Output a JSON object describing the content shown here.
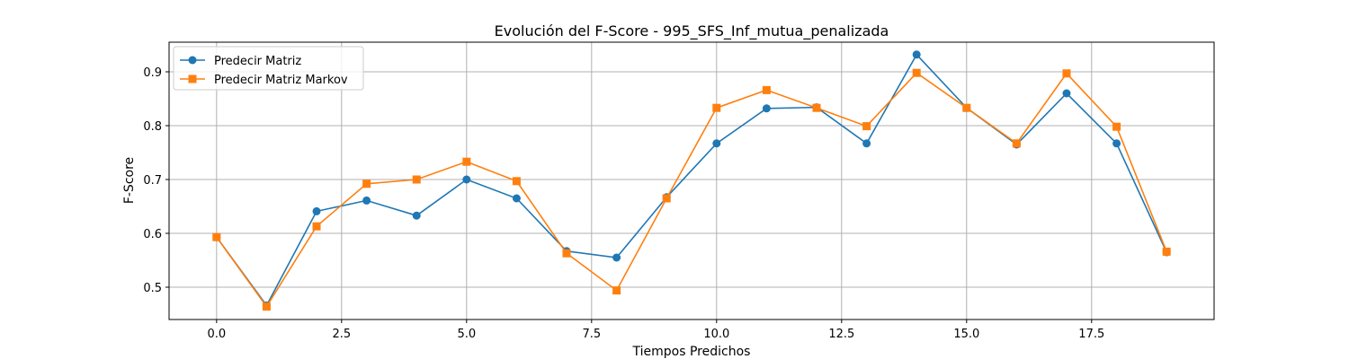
{
  "chart_data": {
    "type": "line",
    "title": "Evolución del F-Score - 995_SFS_Inf_mutua_penalizada",
    "xlabel": "Tiempos Predichos",
    "ylabel": "F-Score",
    "xlim": [
      -0.95,
      19.95
    ],
    "ylim": [
      0.44,
      0.955
    ],
    "grid": true,
    "legend_position": "top-left",
    "x_ticks": [
      0.0,
      2.5,
      5.0,
      7.5,
      10.0,
      12.5,
      15.0,
      17.5
    ],
    "x_tick_labels": [
      "0.0",
      "2.5",
      "5.0",
      "7.5",
      "10.0",
      "12.5",
      "15.0",
      "17.5"
    ],
    "y_ticks": [
      0.5,
      0.6,
      0.7,
      0.8,
      0.9
    ],
    "y_tick_labels": [
      "0.5",
      "0.6",
      "0.7",
      "0.8",
      "0.9"
    ],
    "x": [
      0,
      1,
      2,
      3,
      4,
      5,
      6,
      7,
      8,
      9,
      10,
      11,
      12,
      13,
      14,
      15,
      16,
      17,
      18,
      19
    ],
    "series": [
      {
        "name": "Predecir Matriz",
        "color": "#1f77b4",
        "marker": "circle",
        "values": [
          0.593,
          0.466,
          0.641,
          0.661,
          0.633,
          0.7,
          0.665,
          0.567,
          0.555,
          0.667,
          0.767,
          0.832,
          0.834,
          0.767,
          0.932,
          0.833,
          0.765,
          0.86,
          0.767,
          0.565
        ]
      },
      {
        "name": "Predecir Matriz Markov",
        "color": "#ff7f0e",
        "marker": "square",
        "values": [
          0.593,
          0.464,
          0.613,
          0.692,
          0.7,
          0.733,
          0.697,
          0.563,
          0.494,
          0.665,
          0.833,
          0.866,
          0.833,
          0.799,
          0.898,
          0.833,
          0.767,
          0.897,
          0.798,
          0.566
        ]
      }
    ]
  }
}
